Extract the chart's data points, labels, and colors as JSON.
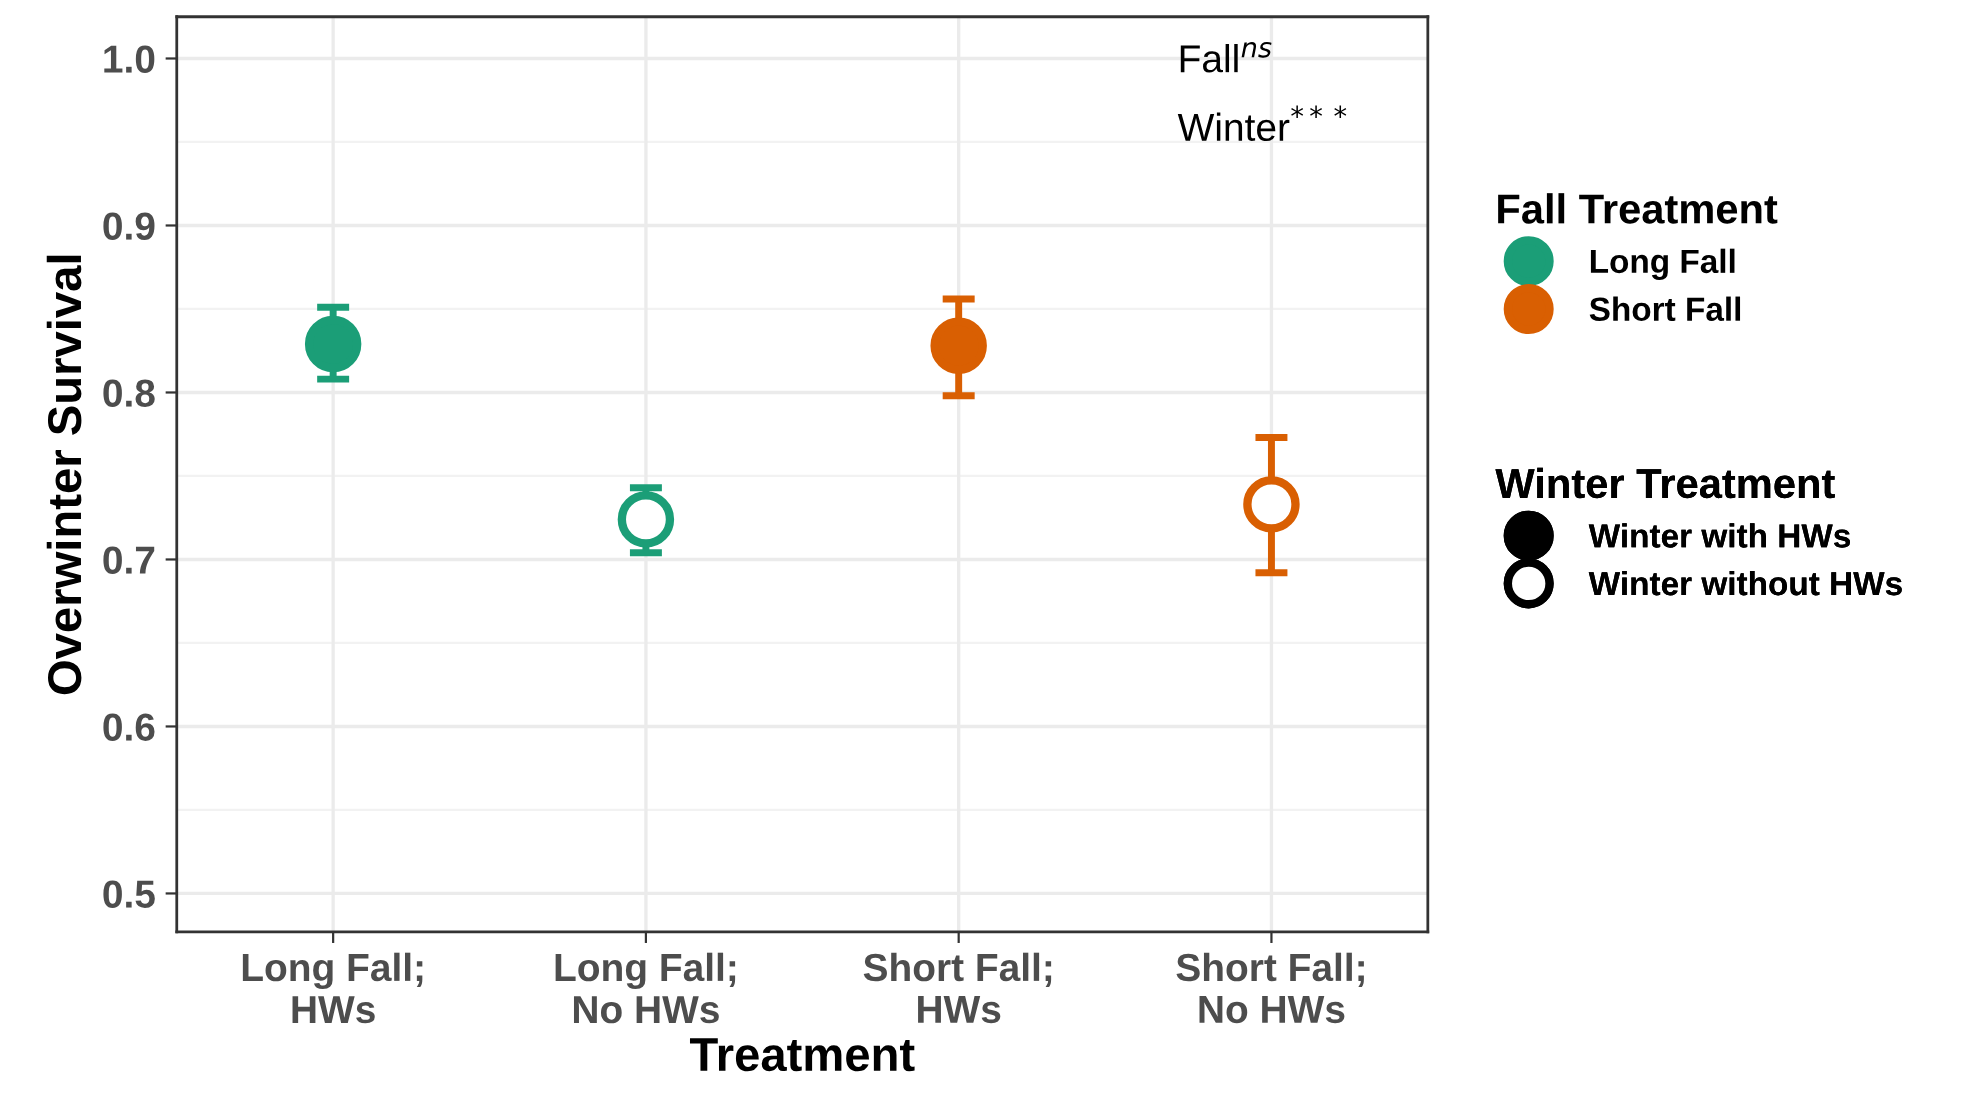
{
  "chart_data": {
    "type": "scatter",
    "xlabel": "Treatment",
    "ylabel": "Overwinter Survival",
    "categories": [
      "Long Fall;\nHWs",
      "Long Fall;\nNo HWs",
      "Short Fall;\nHWs",
      "Short Fall;\nNo HWs"
    ],
    "series": [
      {
        "name": "Long Fall",
        "color": "#1b9e77",
        "values": [
          0.829,
          0.724,
          null,
          null
        ],
        "errors": [
          [
            0.808,
            0.851
          ],
          [
            0.704,
            0.743
          ],
          null,
          null
        ],
        "colors": [
          "#1b9e77",
          "#ffffff",
          "#1b9e77",
          "#1b9e77"
        ]
      },
      {
        "name": "Short Fall",
        "color": "#d95f02",
        "values": [
          null,
          null,
          0.828,
          0.733
        ],
        "errors": [
          null,
          null,
          [
            0.798,
            0.856
          ],
          [
            0.692,
            0.773
          ]
        ],
        "colors": [
          "#d95f02",
          "#d95f02",
          "#d95f02",
          "#ffffff"
        ]
      },
      {
        "name": "Winter with HWs",
        "color": "#000000",
        "values": [
          null,
          null,
          null,
          null
        ],
        "colors": [
          "#000000",
          "#000000",
          "#000000",
          "#000000"
        ]
      },
      {
        "name": "Winter without HWs",
        "color": "#000000",
        "values": [
          null,
          null,
          null,
          null
        ],
        "colors": [
          "#ffffff",
          "#ffffff",
          "#ffffff",
          "#ffffff"
        ]
      }
    ],
    "legend_title": [
      "Fall Treatment",
      "Winter Treatment"
    ],
    "annotations": [
      "Fall$^{ns}$",
      "Winter$^{***}$"
    ],
    "ylim": [
      0.477,
      1.025
    ],
    "yticks": [
      0.5,
      0.6,
      0.7,
      0.8,
      0.9,
      {
        "value": 1.0,
        "label": "1.0"
      }
    ],
    "grid": true,
    "legend": "right",
    "marker": "circle"
  }
}
